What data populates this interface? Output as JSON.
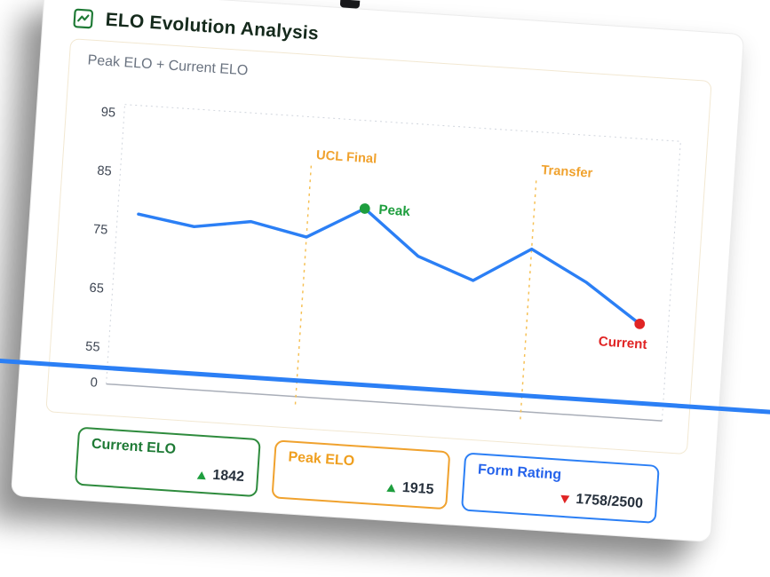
{
  "header": {
    "title": "ELO Evolution Analysis"
  },
  "panel": {
    "label": "Peak ELO + Current ELO"
  },
  "chart_data": {
    "type": "line",
    "title": "Peak ELO + Current ELO",
    "xlabel": "",
    "ylabel": "",
    "ylim": [
      55,
      95
    ],
    "y_ticks": [
      95,
      85,
      75,
      65,
      55
    ],
    "baseline_tick": 0,
    "grid": false,
    "legend": "none",
    "x": [
      1,
      2,
      3,
      4,
      5,
      6,
      7,
      8,
      9,
      10
    ],
    "series": [
      {
        "name": "ELO",
        "color": "#2b7ff5",
        "values": [
          78,
          76.5,
          78,
          76,
          81.5,
          74,
          70.5,
          76.5,
          71.5,
          65
        ]
      }
    ],
    "annotations": {
      "vlines": [
        {
          "label": "UCL Final",
          "at_index": 3,
          "line_color": "#f6c054",
          "label_color": "#f0a22e"
        },
        {
          "label": "Transfer",
          "at_index": 7,
          "line_color": "#f6c054",
          "label_color": "#f0a22e"
        }
      ],
      "points": [
        {
          "label": "Peak",
          "at_index": 4,
          "color": "#1e9e3e",
          "placement": "right"
        },
        {
          "label": "Current",
          "at_index": 9,
          "color": "#e02424",
          "placement": "below"
        }
      ]
    }
  },
  "stats": [
    {
      "title": "Current ELO",
      "value": "1842",
      "trend": "up",
      "accent": "#2e8b3d",
      "title_color": "#1e7a35",
      "trend_color": "#1e9e3e"
    },
    {
      "title": "Peak ELO",
      "value": "1915",
      "trend": "up",
      "accent": "#f0a22e",
      "title_color": "#ef9f1f",
      "trend_color": "#1e9e3e"
    },
    {
      "title": "Form Rating",
      "value": "1758/2500",
      "trend": "down",
      "accent": "#2b7ff5",
      "title_color": "#2563eb",
      "trend_color": "#e02424"
    }
  ],
  "colors": {
    "divider_blue": "#2b7ff5",
    "axis_text": "#3f4754",
    "plot_border": "#cfd4dc",
    "axis_line": "#a9aeb8"
  }
}
